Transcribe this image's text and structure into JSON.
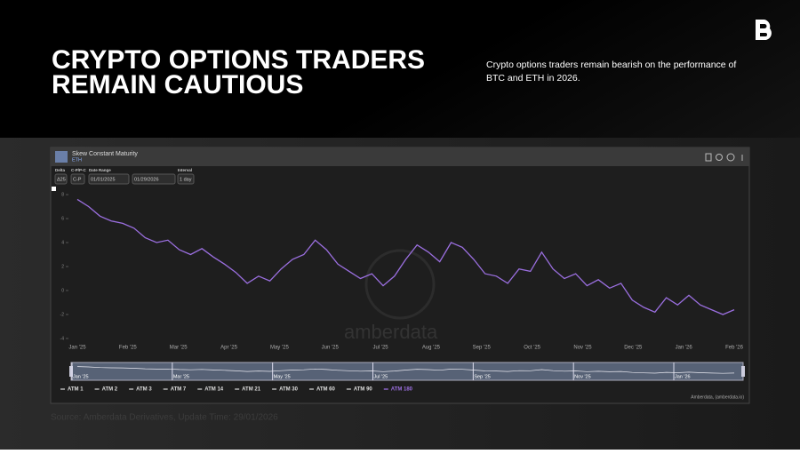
{
  "header": {
    "title_lines": [
      "CRYPTO OPTIONS TRADERS",
      "REMAIN CAUTIOUS"
    ],
    "description": "Crypto options traders remain bearish on the performance of BTC and ETH in 2026."
  },
  "panel": {
    "title": "Skew Constant Maturity",
    "asset": "ETH",
    "controls": [
      {
        "label": "Delta",
        "value": "Δ25"
      },
      {
        "label": "C-P/P-C",
        "value": "C-P"
      },
      {
        "label": "Date Range",
        "value": "01/01/2025"
      },
      {
        "label": "",
        "value": "01/29/2026"
      },
      {
        "label": "Interval",
        "value": "1 day"
      }
    ],
    "watermark": "amberdata",
    "credit": "Amberdata, (amberdata.io)"
  },
  "chart_data": {
    "type": "line",
    "xticks": [
      "Jan '25",
      "Feb '25",
      "Mar '25",
      "Apr '25",
      "May '25",
      "Jun '25",
      "Jul '25",
      "Aug '25",
      "Sep '25",
      "Oct '25",
      "Nov '25",
      "Dec '25",
      "Jan '26",
      "Feb '26"
    ],
    "navigator_labels": [
      "Jan '25",
      "Mar '25",
      "May '25",
      "Jul '25",
      "Sep '25",
      "Nov '25",
      "Jan '26"
    ],
    "ylim": [
      -4.3,
      8.3
    ],
    "yticks": [
      8,
      6,
      4,
      2,
      0,
      -2,
      -4
    ],
    "grid": false,
    "series": [
      {
        "name": "ATM 1",
        "color": "#cccccc",
        "visible": false
      },
      {
        "name": "ATM 2",
        "color": "#cccccc",
        "visible": false
      },
      {
        "name": "ATM 3",
        "color": "#cccccc",
        "visible": false
      },
      {
        "name": "ATM 7",
        "color": "#cccccc",
        "visible": false
      },
      {
        "name": "ATM 14",
        "color": "#cccccc",
        "visible": false
      },
      {
        "name": "ATM 21",
        "color": "#cccccc",
        "visible": false
      },
      {
        "name": "ATM 30",
        "color": "#cccccc",
        "visible": false
      },
      {
        "name": "ATM 60",
        "color": "#cccccc",
        "visible": false
      },
      {
        "name": "ATM 90",
        "color": "#cccccc",
        "visible": false
      },
      {
        "name": "ATM 180",
        "color": "#9b6fe0",
        "visible": true,
        "values": [
          7.6,
          7.0,
          6.2,
          5.8,
          5.6,
          5.2,
          4.4,
          4.0,
          4.2,
          3.4,
          3.0,
          3.5,
          2.8,
          2.2,
          1.5,
          0.6,
          1.2,
          0.8,
          1.8,
          2.6,
          3.0,
          4.2,
          3.4,
          2.2,
          1.6,
          1.0,
          1.4,
          0.4,
          1.2,
          2.6,
          3.8,
          3.2,
          2.4,
          4.0,
          3.6,
          2.6,
          1.4,
          1.2,
          0.6,
          1.8,
          1.6,
          3.2,
          1.8,
          1.0,
          1.4,
          0.4,
          0.9,
          0.2,
          0.6,
          -0.8,
          -1.4,
          -1.8,
          -0.6,
          -1.2,
          -0.4,
          -1.2,
          -1.6,
          -2.0,
          -1.6
        ]
      }
    ]
  },
  "footer": {
    "source": "Source: Amberdata Derivatives, Update Time: 29/01/2026"
  }
}
